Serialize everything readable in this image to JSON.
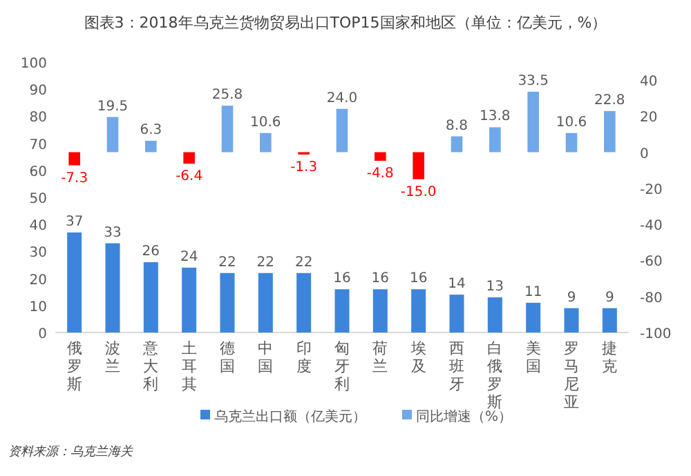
{
  "chart_data": {
    "type": "bar",
    "title": "图表3：2018年乌克兰货物贸易出口TOP15国家和地区（单位：亿美元，%）",
    "categories": [
      "俄罗斯",
      "波兰",
      "意大利",
      "土耳其",
      "德国",
      "中国",
      "印度",
      "匈牙利",
      "荷兰",
      "埃及",
      "西班牙",
      "白俄罗斯",
      "美国",
      "罗马尼亚",
      "捷克"
    ],
    "series": [
      {
        "name": "乌克兰出口额（亿美元）",
        "color": "#3d85db",
        "values": [
          37,
          33,
          26,
          24,
          22,
          22,
          22,
          16,
          16,
          16,
          14,
          13,
          11,
          9,
          9
        ]
      },
      {
        "name": "同比增速（%）",
        "axis": "y2",
        "color": "#70a8ea",
        "colors": [
          "#ff0000",
          "#70a8ea",
          "#70a8ea",
          "#ff0000",
          "#70a8ea",
          "#70a8ea",
          "#ff0000",
          "#70a8ea",
          "#ff0000",
          "#ff0000",
          "#70a8ea",
          "#70a8ea",
          "#70a8ea",
          "#70a8ea",
          "#70a8ea"
        ],
        "values": [
          -7.3,
          19.5,
          6.3,
          -6.4,
          25.8,
          10.6,
          -1.3,
          24.0,
          -4.8,
          -15.0,
          8.8,
          13.8,
          33.5,
          10.6,
          22.8
        ],
        "value_labels": [
          "-7.3",
          "19.5",
          "6.3",
          "-6.4",
          "25.8",
          "10.6",
          "-1.3",
          "24.0",
          "-4.8",
          "-15.0",
          "8.8",
          "13.8",
          "33.5",
          "10.6",
          "22.8"
        ]
      }
    ],
    "ylim": [
      0,
      100
    ],
    "yticks": [
      0,
      10,
      20,
      30,
      40,
      50,
      60,
      70,
      80,
      90,
      100
    ],
    "y2lim": [
      -100,
      40
    ],
    "y2ticks": [
      -100,
      -80,
      -60,
      -40,
      -20,
      0,
      20,
      40
    ],
    "data_labels": true,
    "legend": "bottom",
    "grid": false,
    "annotations": [
      "资料来源：乌克兰海关"
    ]
  }
}
